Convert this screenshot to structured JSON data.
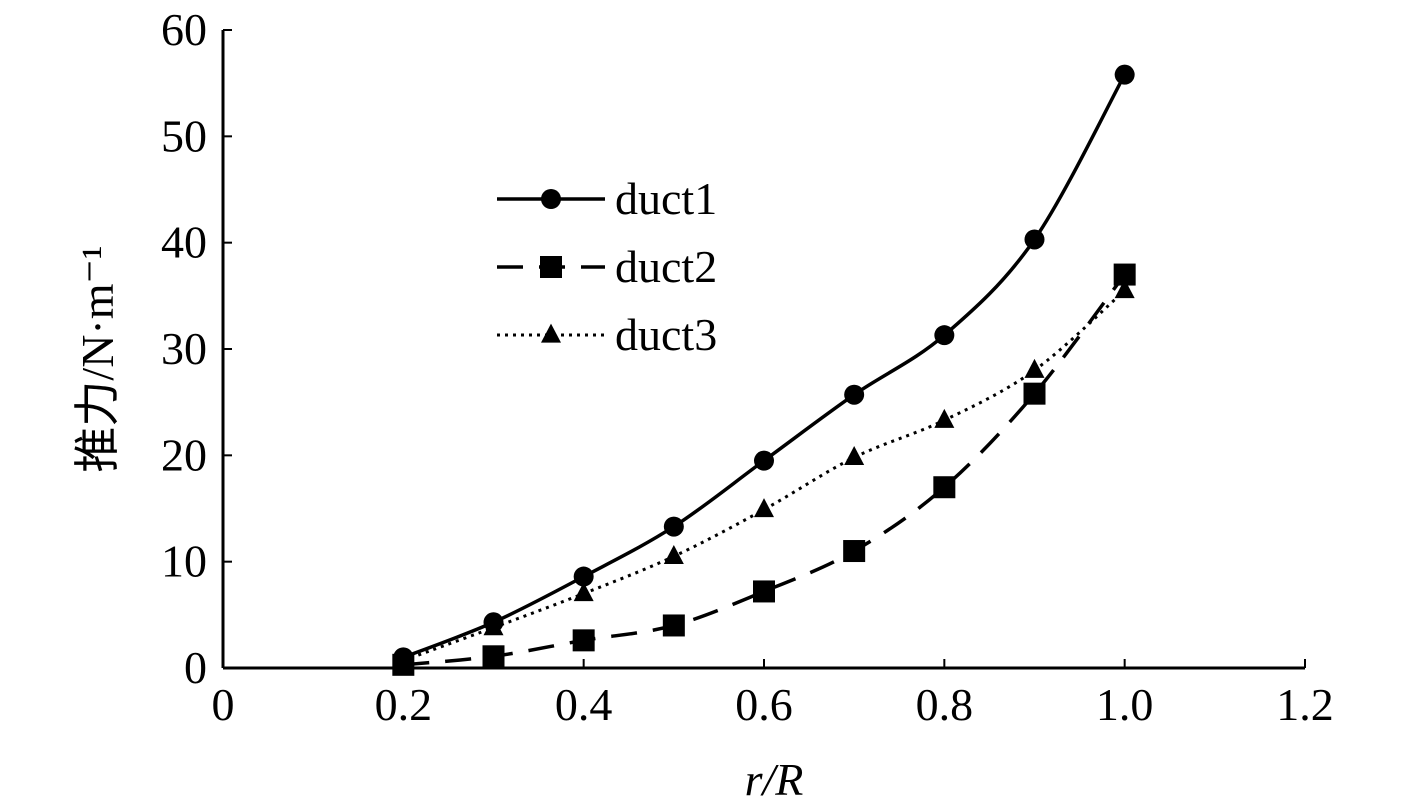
{
  "chart_data": {
    "type": "line",
    "xlabel": "r/R",
    "ylabel": "推力/N·m⁻¹",
    "xlim": [
      0,
      1.2
    ],
    "ylim": [
      0,
      60
    ],
    "x_ticks": [
      "0",
      "0.2",
      "0.4",
      "0.6",
      "0.8",
      "1.0",
      "1.2"
    ],
    "y_ticks": [
      "0",
      "10",
      "20",
      "30",
      "40",
      "50",
      "60"
    ],
    "grid": false,
    "legend_position": "upper-middle",
    "x": [
      0.2,
      0.3,
      0.4,
      0.5,
      0.6,
      0.7,
      0.8,
      0.9,
      1.0
    ],
    "series": [
      {
        "name": "duct1",
        "line": "solid",
        "marker": "circle",
        "values": [
          1.0,
          4.3,
          8.6,
          13.3,
          19.5,
          25.7,
          31.3,
          40.3,
          55.8
        ]
      },
      {
        "name": "duct2",
        "line": "dashed",
        "marker": "square",
        "values": [
          0.3,
          1.1,
          2.6,
          4.0,
          7.2,
          11.0,
          17.0,
          25.8,
          37.0
        ]
      },
      {
        "name": "duct3",
        "line": "dotted",
        "marker": "triangle",
        "values": [
          0.7,
          3.8,
          7.0,
          10.5,
          14.9,
          19.8,
          23.3,
          28.0,
          35.5
        ]
      }
    ]
  }
}
